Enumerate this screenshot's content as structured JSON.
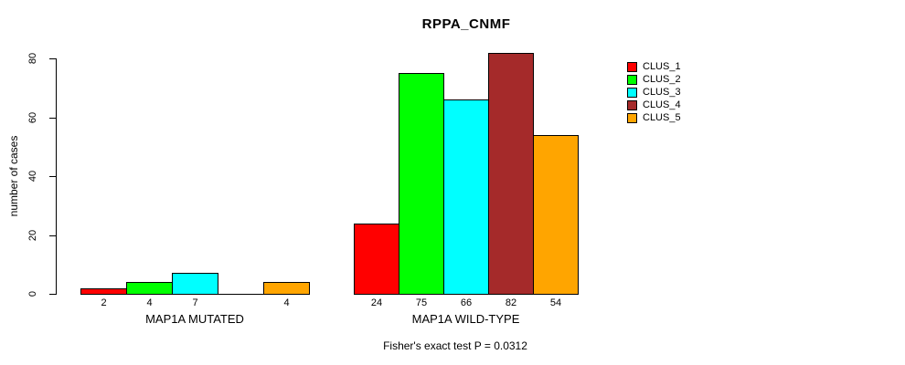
{
  "chart_data": {
    "type": "bar",
    "title": "RPPA_CNMF",
    "ylabel": "number of cases",
    "xlabel": "",
    "footer": "Fisher's exact test P = 0.0312",
    "ylim": [
      0,
      80
    ],
    "y_ticks": [
      0,
      20,
      40,
      60,
      80
    ],
    "grid": false,
    "legend_position": "right",
    "series": [
      {
        "name": "CLUS_1",
        "color": "#FF0000"
      },
      {
        "name": "CLUS_2",
        "color": "#00FF00"
      },
      {
        "name": "CLUS_3",
        "color": "#00FFFF"
      },
      {
        "name": "CLUS_4",
        "color": "#A52A2A"
      },
      {
        "name": "CLUS_5",
        "color": "#FFA500"
      }
    ],
    "groups": [
      {
        "label": "MAP1A MUTATED",
        "values": [
          2,
          4,
          7,
          0,
          4
        ],
        "value_labels": [
          "2",
          "4",
          "7",
          "",
          "4"
        ]
      },
      {
        "label": "MAP1A WILD-TYPE",
        "values": [
          24,
          75,
          66,
          82,
          54
        ],
        "value_labels": [
          "24",
          "75",
          "66",
          "82",
          "54"
        ]
      }
    ]
  }
}
